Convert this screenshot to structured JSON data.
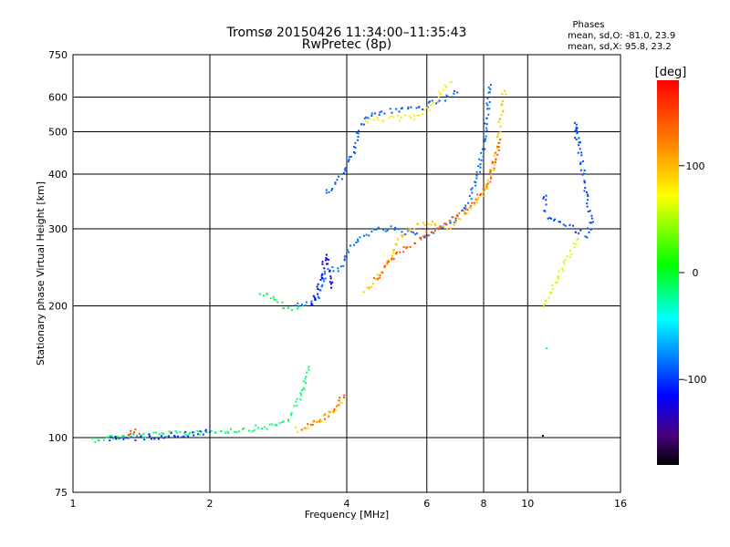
{
  "chart_data": {
    "type": "scatter",
    "title": "Tromsø 20150426 11:34:00–11:35:43",
    "subtitle": "RwPretec (8p)",
    "xlabel": "Frequency [MHz]",
    "ylabel": "Stationary phase Virtual Height [km]",
    "x_scale": "log2",
    "y_scale": "log",
    "xlim": [
      1,
      16
    ],
    "ylim": [
      75,
      750
    ],
    "x_ticks": [
      1,
      2,
      4,
      6,
      8,
      10,
      16
    ],
    "x_tick_labels": [
      "1",
      "2",
      "4",
      "6",
      "8",
      "10",
      "16"
    ],
    "y_ticks": [
      75,
      100,
      200,
      300,
      400,
      500,
      600,
      750
    ],
    "y_tick_labels": [
      "75",
      "100",
      "200",
      "300",
      "400",
      "500",
      "600",
      "750"
    ],
    "grid": true,
    "phase_info": {
      "title": "Phases",
      "line_o": "mean, sd,O: -81.0, 23.9",
      "line_x": "mean, sd,X:  95.8, 23.2"
    },
    "colorbar": {
      "label": "[deg]",
      "range": [
        -180,
        180
      ],
      "ticks": [
        100,
        0,
        -100
      ],
      "tick_labels": [
        "100",
        "0",
        "-100"
      ]
    },
    "traces": [
      {
        "phase": -15,
        "points": [
          [
            1.1,
            99
          ],
          [
            1.2,
            100
          ],
          [
            1.35,
            101
          ],
          [
            1.5,
            101.5
          ],
          [
            1.7,
            102
          ],
          [
            1.9,
            103
          ],
          [
            2.1,
            103.5
          ],
          [
            2.3,
            104
          ],
          [
            2.5,
            105
          ],
          [
            2.7,
            106
          ],
          [
            2.9,
            108
          ],
          [
            3.0,
            112
          ],
          [
            3.1,
            118
          ],
          [
            3.2,
            128
          ],
          [
            3.3,
            145
          ]
        ]
      },
      {
        "phase": -100,
        "points": [
          [
            1.2,
            99
          ],
          [
            1.4,
            100
          ],
          [
            1.6,
            101
          ],
          [
            1.8,
            102
          ],
          [
            2.0,
            103
          ]
        ]
      },
      {
        "phase": 150,
        "points": [
          [
            1.33,
            101
          ],
          [
            1.36,
            104
          ],
          [
            1.4,
            102
          ]
        ]
      },
      {
        "phase": 140,
        "points": [
          [
            3.2,
            105
          ],
          [
            3.4,
            108
          ],
          [
            3.6,
            112
          ],
          [
            3.8,
            118
          ],
          [
            3.95,
            125
          ]
        ]
      },
      {
        "phase": 85,
        "points": [
          [
            3.1,
            104
          ],
          [
            3.5,
            109
          ],
          [
            3.9,
            120
          ]
        ]
      },
      {
        "phase": -10,
        "points": [
          [
            2.6,
            215
          ],
          [
            2.75,
            207
          ],
          [
            2.9,
            200
          ],
          [
            3.0,
            196
          ],
          [
            3.1,
            198
          ],
          [
            3.2,
            200
          ]
        ]
      },
      {
        "phase": -85,
        "points": [
          [
            3.1,
            202
          ],
          [
            3.25,
            200
          ],
          [
            3.4,
            205
          ],
          [
            3.5,
            215
          ],
          [
            3.6,
            240
          ],
          [
            3.7,
            245
          ],
          [
            3.8,
            240
          ],
          [
            3.9,
            250
          ],
          [
            4.0,
            262
          ],
          [
            4.2,
            280
          ],
          [
            4.4,
            292
          ],
          [
            4.7,
            298
          ],
          [
            5.0,
            300
          ],
          [
            5.3,
            295
          ],
          [
            5.6,
            290
          ],
          [
            6.0,
            290
          ],
          [
            6.4,
            300
          ],
          [
            6.8,
            310
          ],
          [
            7.2,
            330
          ],
          [
            7.6,
            370
          ],
          [
            7.9,
            430
          ],
          [
            8.1,
            520
          ],
          [
            8.2,
            600
          ],
          [
            8.3,
            640
          ]
        ]
      },
      {
        "phase": -120,
        "points": [
          [
            3.35,
            200
          ],
          [
            3.5,
            230
          ],
          [
            3.6,
            260
          ],
          [
            3.7,
            220
          ]
        ]
      },
      {
        "phase": 95,
        "points": [
          [
            4.4,
            215
          ],
          [
            4.6,
            225
          ],
          [
            4.8,
            240
          ],
          [
            5.0,
            258
          ],
          [
            5.3,
            290
          ],
          [
            5.7,
            305
          ],
          [
            6.1,
            310
          ],
          [
            6.4,
            300
          ],
          [
            6.7,
            300
          ],
          [
            7.0,
            312
          ],
          [
            7.3,
            325
          ],
          [
            7.6,
            340
          ],
          [
            8.0,
            360
          ],
          [
            8.3,
            400
          ],
          [
            8.6,
            470
          ],
          [
            8.8,
            560
          ],
          [
            8.9,
            620
          ]
        ]
      },
      {
        "phase": 140,
        "points": [
          [
            4.6,
            230
          ],
          [
            4.9,
            248
          ],
          [
            5.1,
            262
          ],
          [
            6.8,
            315
          ],
          [
            7.4,
            335
          ],
          [
            8.2,
            380
          ],
          [
            8.7,
            480
          ]
        ]
      },
      {
        "phase": -90,
        "points": [
          [
            3.6,
            360
          ],
          [
            3.75,
            375
          ],
          [
            3.9,
            395
          ],
          [
            4.1,
            440
          ],
          [
            4.3,
            520
          ],
          [
            4.5,
            545
          ],
          [
            4.8,
            555
          ],
          [
            5.1,
            560
          ],
          [
            5.5,
            565
          ],
          [
            5.9,
            570
          ],
          [
            6.3,
            585
          ],
          [
            6.7,
            600
          ],
          [
            7.0,
            615
          ]
        ]
      },
      {
        "phase": 80,
        "points": [
          [
            4.4,
            530
          ],
          [
            5.6,
            540
          ],
          [
            6.0,
            560
          ],
          [
            6.8,
            650
          ]
        ]
      },
      {
        "phase": -95,
        "points": [
          [
            10.9,
            360
          ],
          [
            11.0,
            320
          ],
          [
            13.5,
            290
          ],
          [
            13.8,
            310
          ],
          [
            12.7,
            525
          ],
          [
            12.8,
            480
          ]
        ]
      },
      {
        "phase": 60,
        "points": [
          [
            10.8,
            200
          ],
          [
            12.9,
            285
          ]
        ]
      },
      {
        "phase": -30,
        "points": [
          [
            11.0,
            160
          ]
        ]
      },
      {
        "phase": -180,
        "points": [
          [
            10.8,
            101
          ]
        ]
      }
    ]
  }
}
